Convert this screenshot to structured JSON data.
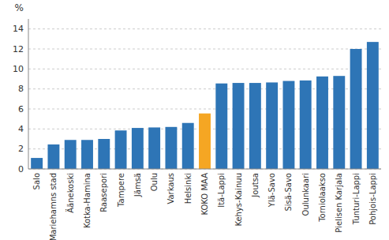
{
  "chart_data": {
    "type": "bar",
    "categories": [
      "Salo",
      "Mariehamns stad",
      "Äänekoski",
      "Kotka-Hamina",
      "Raasepori",
      "Tampere",
      "Jämsä",
      "Oulu",
      "Varkaus",
      "Helsinki",
      "KOKO MAA",
      "Itä-Lappi",
      "Kehys-Kainuu",
      "Joutsa",
      "Ylä-Savo",
      "Sisä-Savo",
      "Oulunkaari",
      "Torniolaakso",
      "Pielisen Karjala",
      "Tunturi-Lappi",
      "Pohjois-Lappi"
    ],
    "values": [
      1.1,
      2.45,
      2.9,
      2.9,
      3.0,
      3.85,
      4.1,
      4.15,
      4.2,
      4.6,
      5.55,
      8.55,
      8.6,
      8.6,
      8.65,
      8.8,
      8.85,
      9.25,
      9.3,
      12.0,
      12.7
    ],
    "colors": [
      "#2e75b6",
      "#2e75b6",
      "#2e75b6",
      "#2e75b6",
      "#2e75b6",
      "#2e75b6",
      "#2e75b6",
      "#2e75b6",
      "#2e75b6",
      "#2e75b6",
      "#f5a623",
      "#2e75b6",
      "#2e75b6",
      "#2e75b6",
      "#2e75b6",
      "#2e75b6",
      "#2e75b6",
      "#2e75b6",
      "#2e75b6",
      "#2e75b6",
      "#2e75b6"
    ],
    "ylabel": "%",
    "ylim": [
      0,
      15
    ],
    "yticks": [
      0,
      2,
      4,
      6,
      8,
      10,
      12,
      14
    ],
    "grid": true
  }
}
